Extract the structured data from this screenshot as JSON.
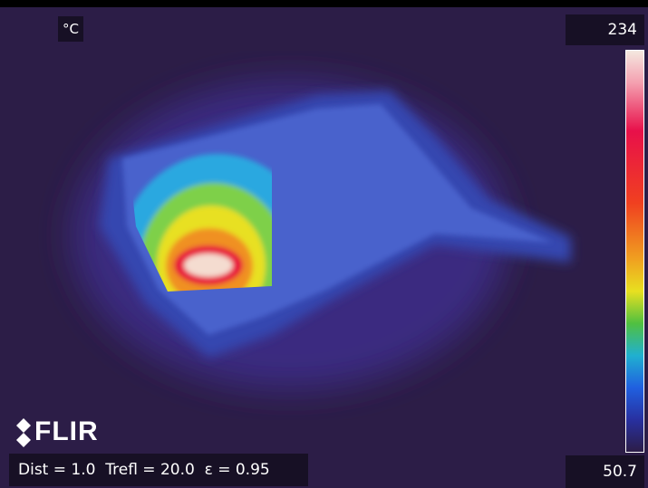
{
  "overlay": {
    "unit": "°C",
    "scale_max": 234,
    "scale_min": 50.7,
    "brand": "FLIR",
    "status": "Dist = 1.0  Trefl = 20.0  ε = 0.95"
  }
}
